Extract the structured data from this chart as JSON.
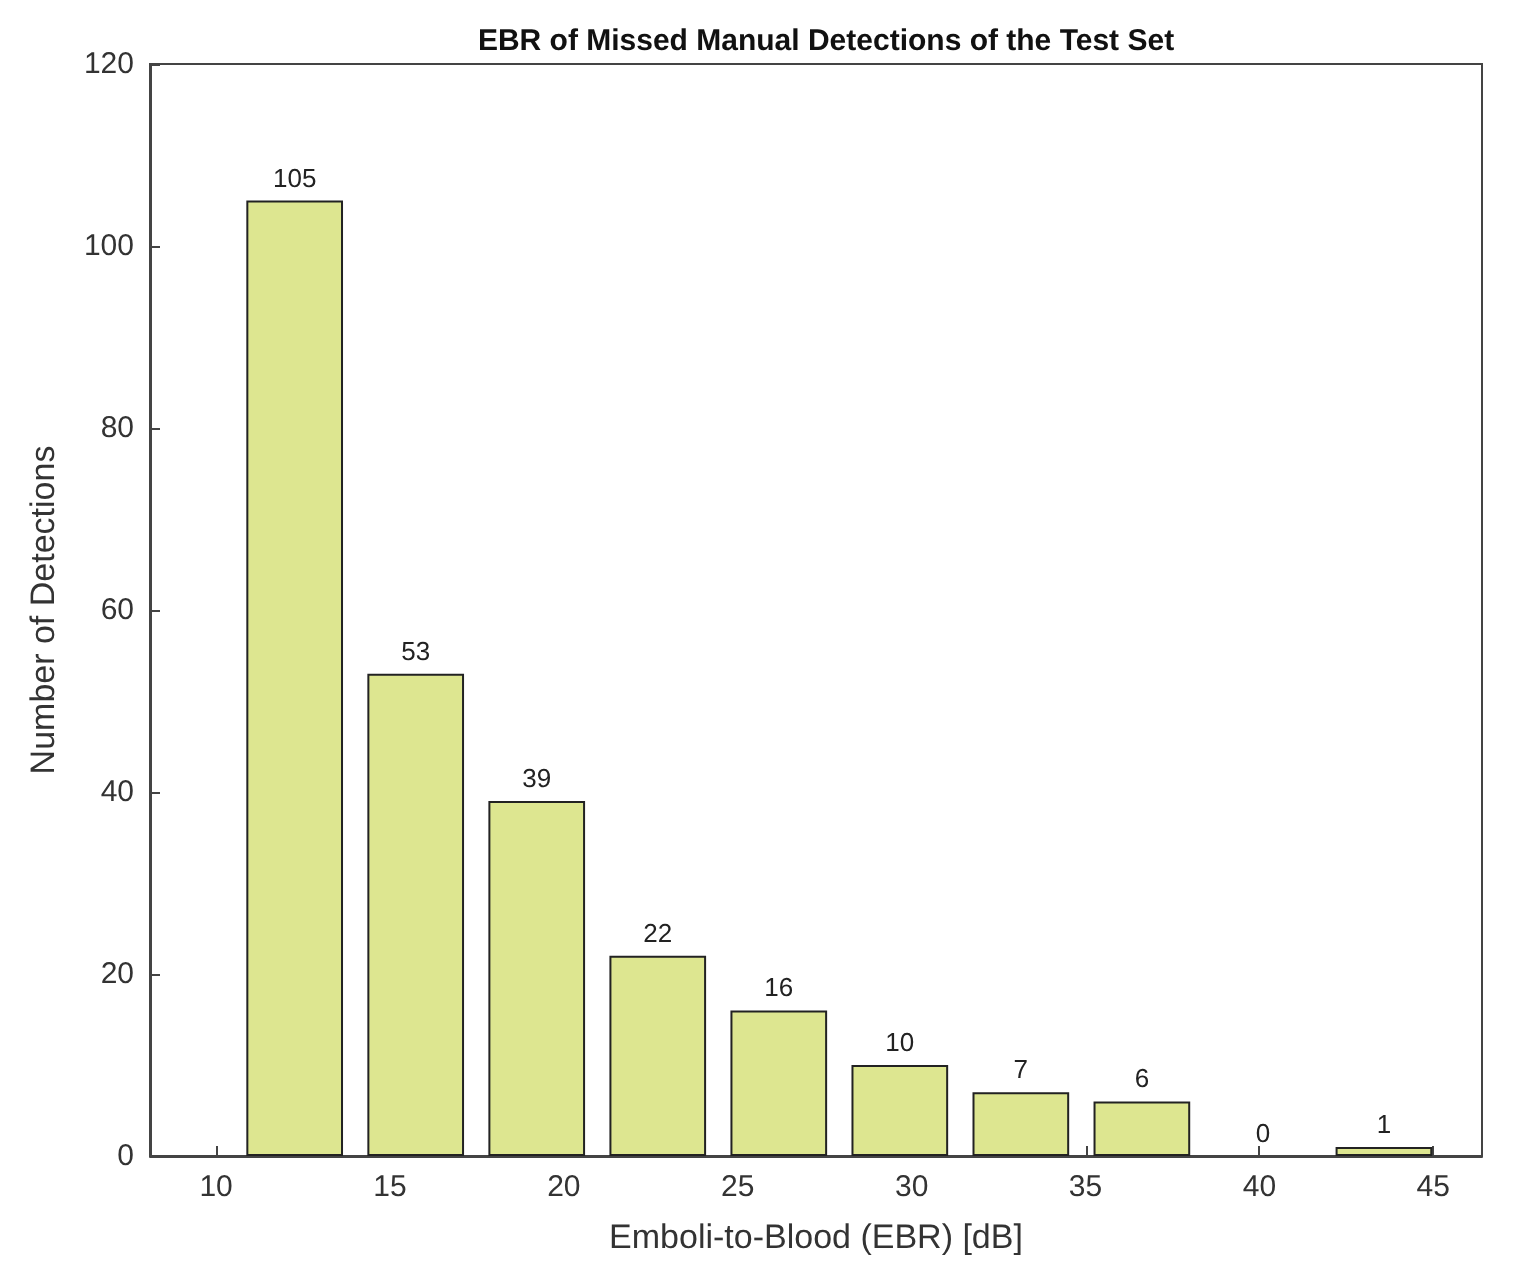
{
  "chart_data": {
    "type": "bar",
    "title": "EBR of Missed Manual Detections of the Test Set",
    "xlabel": "Emboli-to-Blood (EBR) [dB]",
    "ylabel": "Number of Detections",
    "x": [
      12.26,
      15.74,
      19.22,
      22.7,
      26.18,
      29.66,
      33.14,
      36.62,
      40.1,
      43.58
    ],
    "values": [
      105,
      53,
      39,
      22,
      16,
      10,
      7,
      6,
      0,
      1
    ],
    "color": "#dde690",
    "xlim": [
      8.1,
      46.4
    ],
    "xticks": [
      10,
      15,
      20,
      25,
      30,
      35,
      40,
      45
    ],
    "ylim": [
      0,
      120
    ],
    "yticks": [
      0,
      20,
      40,
      60,
      80,
      100,
      120
    ],
    "data_labels": true,
    "grid": false
  }
}
